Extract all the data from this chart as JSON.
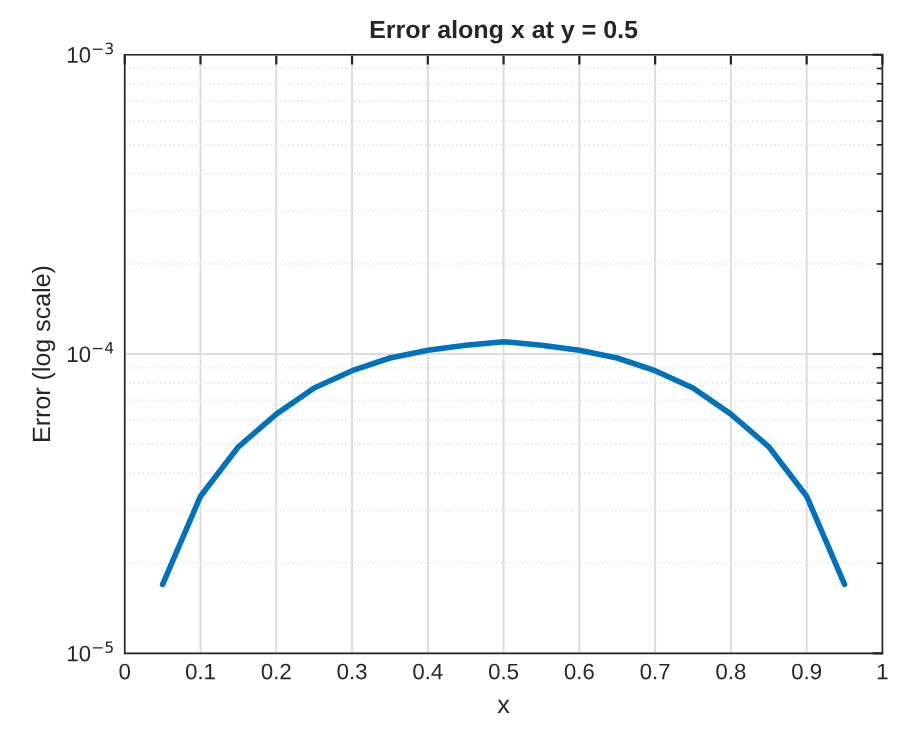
{
  "chart_data": {
    "type": "line",
    "title": "Error along x at y = 0.5",
    "xlabel": "x",
    "ylabel": "Error (log scale)",
    "log": "y",
    "grid": true,
    "marker": "none",
    "line_style": "solid",
    "x": [
      0.05,
      0.1,
      0.15,
      0.2,
      0.25,
      0.3,
      0.35,
      0.4,
      0.45,
      0.5,
      0.55,
      0.6,
      0.65,
      0.7,
      0.75,
      0.8,
      0.85,
      0.9,
      0.95
    ],
    "series": [
      {
        "color": "#0072bd",
        "values": [
          1.7e-05,
          3.35e-05,
          4.9e-05,
          6.3e-05,
          7.7e-05,
          8.8e-05,
          9.7e-05,
          0.000103,
          0.000107,
          0.00011,
          0.000107,
          0.000103,
          9.7e-05,
          8.8e-05,
          7.7e-05,
          6.3e-05,
          4.9e-05,
          3.35e-05,
          1.7e-05
        ]
      }
    ],
    "xlim": [
      0,
      1
    ],
    "xticks": [
      0,
      0.1,
      0.2,
      0.3,
      0.4,
      0.5,
      0.6,
      0.7,
      0.8,
      0.9,
      1
    ],
    "ylim": [
      1e-05,
      0.001
    ],
    "yticks": [
      {
        "value": 1e-05,
        "label": "10$^{−5}$"
      },
      {
        "value": 0.0001,
        "label": "10$^{−4}$"
      },
      {
        "value": 0.001,
        "label": "10$^{−3}$"
      }
    ]
  }
}
